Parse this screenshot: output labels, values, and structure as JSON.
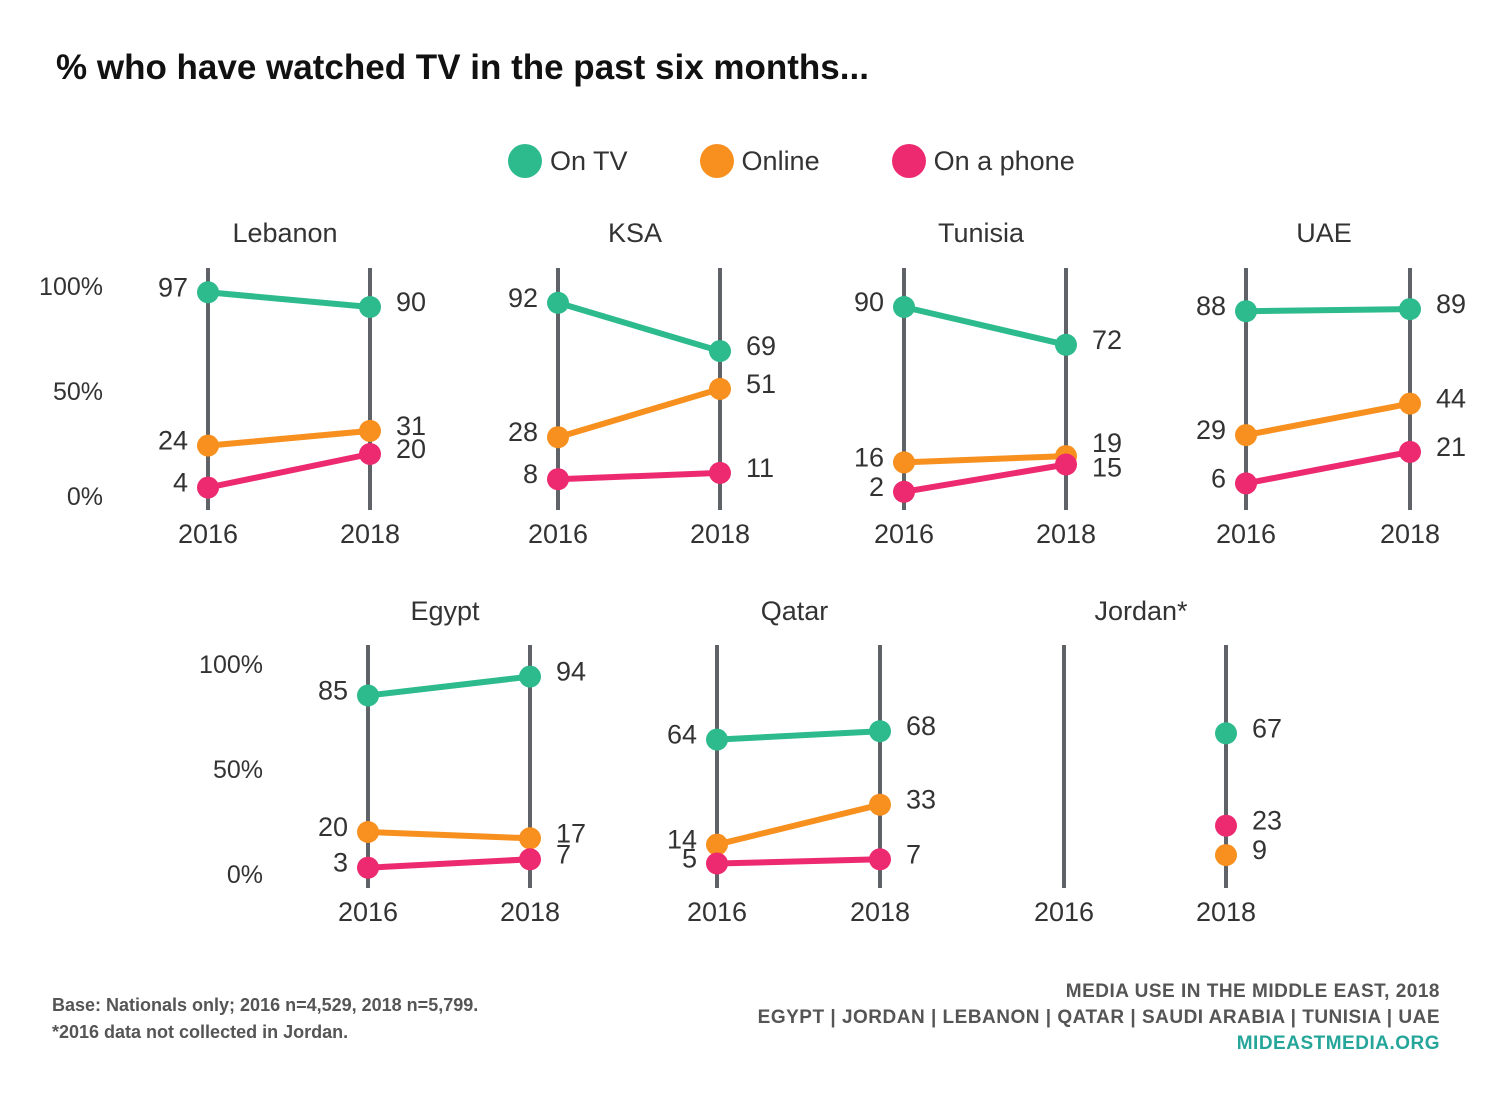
{
  "title": "% who have watched TV in the past six months...",
  "legend": [
    {
      "label": "On TV",
      "color": "#2dbb8e"
    },
    {
      "label": "Online",
      "color": "#f7901e"
    },
    {
      "label": "On a phone",
      "color": "#ed2a6f"
    }
  ],
  "chart_data": {
    "type": "line",
    "title": "% who have watched TV in the past six months...",
    "x": [
      "2016",
      "2018"
    ],
    "y_ticks": [
      "100%",
      "50%",
      "0%"
    ],
    "ylim": [
      0,
      100
    ],
    "series_names": [
      "On TV",
      "Online",
      "On a phone"
    ],
    "panels": [
      {
        "name": "Lebanon",
        "series": [
          {
            "name": "On TV",
            "values": [
              97,
              90
            ]
          },
          {
            "name": "Online",
            "values": [
              24,
              31
            ]
          },
          {
            "name": "On a phone",
            "values": [
              4,
              20
            ]
          }
        ]
      },
      {
        "name": "KSA",
        "series": [
          {
            "name": "On TV",
            "values": [
              92,
              69
            ]
          },
          {
            "name": "Online",
            "values": [
              28,
              51
            ]
          },
          {
            "name": "On a phone",
            "values": [
              8,
              11
            ]
          }
        ]
      },
      {
        "name": "Tunisia",
        "series": [
          {
            "name": "On TV",
            "values": [
              90,
              72
            ]
          },
          {
            "name": "Online",
            "values": [
              16,
              19
            ]
          },
          {
            "name": "On a phone",
            "values": [
              2,
              15
            ]
          }
        ]
      },
      {
        "name": "UAE",
        "series": [
          {
            "name": "On TV",
            "values": [
              88,
              89
            ]
          },
          {
            "name": "Online",
            "values": [
              29,
              44
            ]
          },
          {
            "name": "On a phone",
            "values": [
              6,
              21
            ]
          }
        ]
      },
      {
        "name": "Egypt",
        "series": [
          {
            "name": "On TV",
            "values": [
              85,
              94
            ]
          },
          {
            "name": "Online",
            "values": [
              20,
              17
            ]
          },
          {
            "name": "On a phone",
            "values": [
              3,
              7
            ]
          }
        ]
      },
      {
        "name": "Qatar",
        "series": [
          {
            "name": "On TV",
            "values": [
              64,
              68
            ]
          },
          {
            "name": "Online",
            "values": [
              14,
              33
            ]
          },
          {
            "name": "On a phone",
            "values": [
              5,
              7
            ]
          }
        ]
      },
      {
        "name": "Jordan*",
        "series": [
          {
            "name": "On TV",
            "values": [
              null,
              67
            ]
          },
          {
            "name": "Online",
            "values": [
              null,
              9
            ]
          },
          {
            "name": "On a phone",
            "values": [
              null,
              23
            ]
          }
        ]
      }
    ]
  },
  "footer": {
    "base_note": "Base: Nationals only; 2016 n=4,529, 2018 n=5,799.",
    "jordan_note": "*2016 data not collected in Jordan.",
    "source_title": "MEDIA USE IN THE MIDDLE EAST, 2018",
    "countries": "EGYPT | JORDAN | LEBANON | QATAR | SAUDI ARABIA | TUNISIA | UAE",
    "url": "MIDEASTMEDIA.ORG",
    "url_color": "#26a69a"
  }
}
